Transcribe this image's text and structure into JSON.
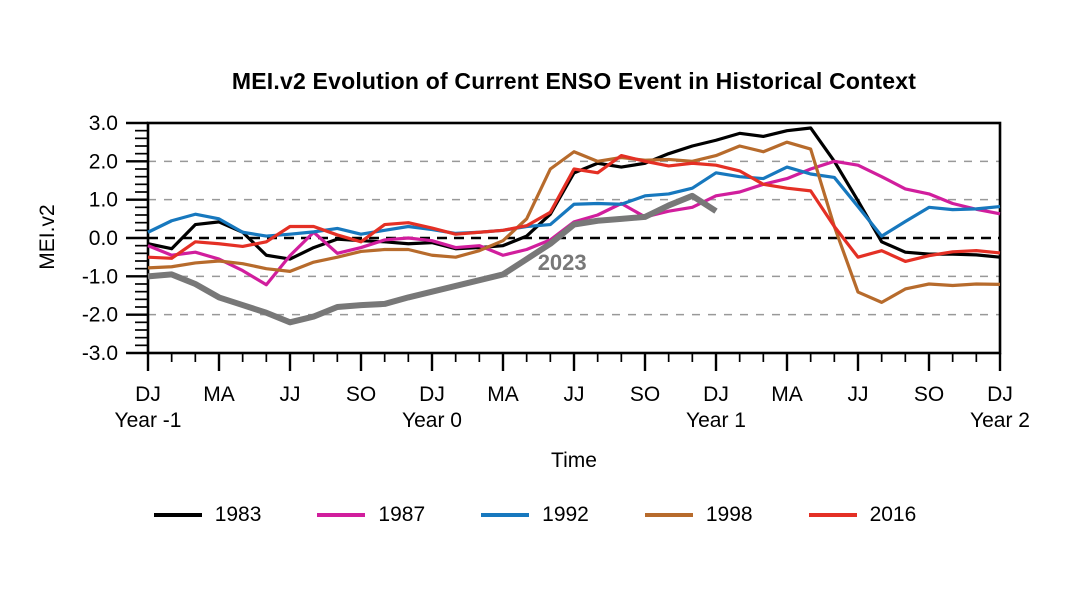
{
  "title": "MEI.v2 Evolution of Current ENSO Event in Historical Context",
  "axes": {
    "y_label": "MEI.v2",
    "x_label": "Time",
    "y_tick_labels": [
      "3.0",
      "2.0",
      "1.0",
      "0.0",
      "-1.0",
      "-2.0",
      "-3.0"
    ],
    "x_tick_labels": [
      "DJ",
      "MA",
      "JJ",
      "SO",
      "DJ",
      "MA",
      "JJ",
      "SO",
      "DJ",
      "MA",
      "JJ",
      "SO",
      "DJ"
    ],
    "year_labels": [
      "Year -1",
      "Year 0",
      "Year 1",
      "Year 2"
    ]
  },
  "annotation": {
    "text": "2023",
    "color": "#787878"
  },
  "legend": [
    {
      "label": "1983",
      "color": "#000000"
    },
    {
      "label": "1987",
      "color": "#d11e9d"
    },
    {
      "label": "1992",
      "color": "#1778be"
    },
    {
      "label": "1998",
      "color": "#b76b2c"
    },
    {
      "label": "2016",
      "color": "#e43025"
    }
  ],
  "chart_data": {
    "type": "line",
    "title": "MEI.v2 Evolution of Current ENSO Event in Historical Context",
    "xlabel": "Time",
    "ylabel": "MEI.v2",
    "ylim": [
      -3.0,
      3.0
    ],
    "grid_values": [
      2,
      1,
      -1,
      -2
    ],
    "zero_line": true,
    "x_description": "37 bimonthly values (DJ Year -1 through DJ Year 2); labeled ticks every 3rd point",
    "x_tick_positions": [
      0,
      3,
      6,
      9,
      12,
      15,
      18,
      21,
      24,
      27,
      30,
      33,
      36
    ],
    "x_tick_labels": [
      "DJ",
      "MA",
      "JJ",
      "SO",
      "DJ",
      "MA",
      "JJ",
      "SO",
      "DJ",
      "MA",
      "JJ",
      "SO",
      "DJ"
    ],
    "year_label_positions": [
      0,
      12,
      24,
      36
    ],
    "year_labels": [
      "Year -1",
      "Year 0",
      "Year 1",
      "Year 2"
    ],
    "legend_position": "bottom",
    "series": [
      {
        "name": "1983",
        "color": "#000000",
        "width": 3.2,
        "values": [
          -0.15,
          -0.28,
          0.35,
          0.42,
          0.15,
          -0.45,
          -0.55,
          -0.25,
          -0.03,
          -0.07,
          -0.1,
          -0.15,
          -0.12,
          -0.28,
          -0.25,
          -0.2,
          0.05,
          0.62,
          1.7,
          1.95,
          1.85,
          1.95,
          2.2,
          2.4,
          2.55,
          2.73,
          2.65,
          2.8,
          2.87,
          2.0,
          0.97,
          -0.1,
          -0.37,
          -0.42,
          -0.42,
          -0.44,
          -0.5
        ]
      },
      {
        "name": "1987",
        "color": "#d11e9d",
        "width": 3.2,
        "values": [
          -0.2,
          -0.45,
          -0.37,
          -0.55,
          -0.85,
          -1.22,
          -0.46,
          0.15,
          -0.4,
          -0.25,
          -0.05,
          0.0,
          -0.07,
          -0.25,
          -0.2,
          -0.45,
          -0.3,
          -0.05,
          0.42,
          0.6,
          0.9,
          0.55,
          0.7,
          0.8,
          1.1,
          1.2,
          1.4,
          1.55,
          1.8,
          2.0,
          1.9,
          1.6,
          1.28,
          1.15,
          0.9,
          0.75,
          0.63
        ]
      },
      {
        "name": "1992",
        "color": "#1778be",
        "width": 3.2,
        "values": [
          0.15,
          0.45,
          0.62,
          0.5,
          0.15,
          0.05,
          0.1,
          0.16,
          0.25,
          0.1,
          0.2,
          0.3,
          0.22,
          0.12,
          0.15,
          0.2,
          0.3,
          0.35,
          0.88,
          0.9,
          0.88,
          1.1,
          1.15,
          1.3,
          1.7,
          1.6,
          1.55,
          1.85,
          1.67,
          1.58,
          0.82,
          0.05,
          0.43,
          0.8,
          0.74,
          0.76,
          0.82
        ]
      },
      {
        "name": "1998",
        "color": "#b76b2c",
        "width": 3.2,
        "values": [
          -0.78,
          -0.75,
          -0.65,
          -0.6,
          -0.67,
          -0.8,
          -0.87,
          -0.63,
          -0.5,
          -0.35,
          -0.3,
          -0.3,
          -0.45,
          -0.5,
          -0.33,
          -0.07,
          0.5,
          1.8,
          2.25,
          2.0,
          2.1,
          2.03,
          2.05,
          2.0,
          2.15,
          2.4,
          2.25,
          2.5,
          2.32,
          0.3,
          -1.41,
          -1.68,
          -1.33,
          -1.2,
          -1.24,
          -1.2,
          -1.21
        ]
      },
      {
        "name": "2016",
        "color": "#e43025",
        "width": 3.2,
        "values": [
          -0.5,
          -0.53,
          -0.1,
          -0.15,
          -0.22,
          -0.1,
          0.3,
          0.3,
          0.08,
          -0.1,
          0.35,
          0.4,
          0.26,
          0.1,
          0.15,
          0.2,
          0.32,
          0.67,
          1.8,
          1.7,
          2.15,
          2.0,
          1.88,
          1.95,
          1.9,
          1.75,
          1.4,
          1.3,
          1.23,
          0.3,
          -0.5,
          -0.33,
          -0.61,
          -0.46,
          -0.36,
          -0.33,
          -0.39
        ]
      },
      {
        "name": "2023",
        "color": "#787878",
        "width": 6,
        "values": [
          -1.0,
          -0.95,
          -1.2,
          -1.55,
          -1.75,
          -1.95,
          -2.2,
          -2.05,
          -1.8,
          -1.75,
          -1.72,
          -1.55,
          -1.4,
          -1.25,
          -1.1,
          -0.95,
          -0.55,
          -0.15,
          0.35,
          0.45,
          0.5,
          0.55,
          0.85,
          1.1,
          0.7
        ]
      }
    ],
    "annotation": {
      "text": "2023",
      "x_index": 17.5,
      "y_value": -0.62
    }
  }
}
